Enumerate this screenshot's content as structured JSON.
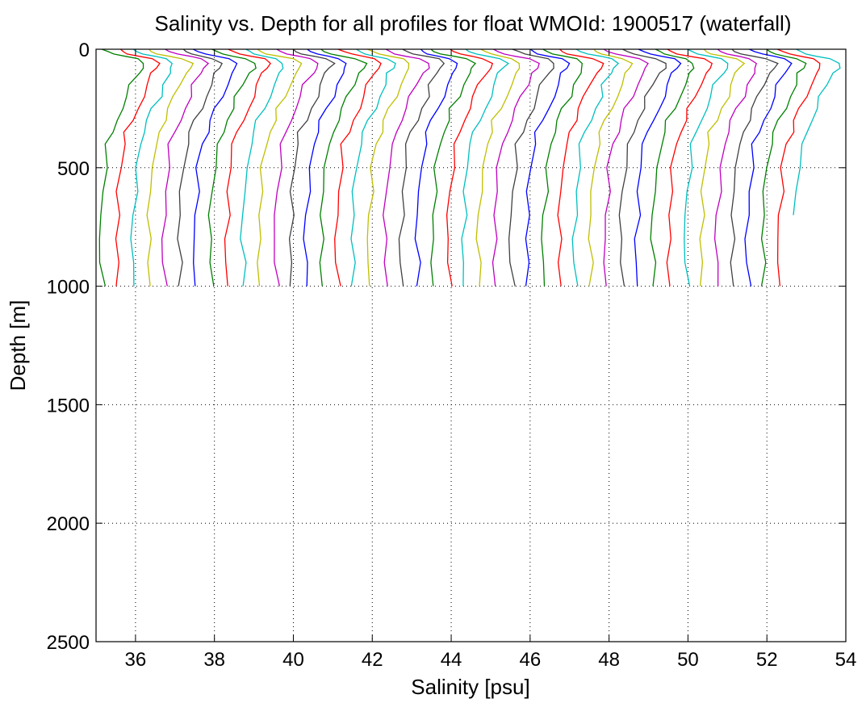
{
  "chart_data": {
    "type": "line",
    "title": "Salinity vs. Depth for all profiles for float WMOId: 1900517 (waterfall)",
    "xlabel": "Salinity [psu]",
    "ylabel": "Depth [m]",
    "xlim": [
      35,
      54
    ],
    "ylim": [
      0,
      2500
    ],
    "y_reversed": true,
    "grid": true,
    "x_ticks": [
      "36",
      "38",
      "40",
      "42",
      "44",
      "46",
      "48",
      "50",
      "52",
      "54"
    ],
    "y_ticks": [
      "0",
      "500",
      "1000",
      "1500",
      "2000",
      "2500"
    ],
    "colors": [
      "#008000",
      "#ff0000",
      "#00bfbf",
      "#bfbf00",
      "#bf00bf",
      "#404040",
      "#0000ff"
    ],
    "waterfall": {
      "profile_count": 45,
      "first_base_salinity": 35.1,
      "offset_per_profile": 0.4,
      "max_depth": 1000,
      "last_profile_max_depth": 730
    },
    "profile_shape": {
      "depth": [
        0,
        10,
        20,
        30,
        40,
        60,
        80,
        100,
        150,
        200,
        250,
        300,
        350,
        400,
        500,
        600,
        700,
        800,
        900,
        1000
      ],
      "salinity_offset": [
        0.05,
        0.15,
        0.3,
        0.6,
        0.9,
        1.1,
        1.05,
        0.95,
        0.8,
        0.7,
        0.55,
        0.42,
        0.3,
        0.2,
        0.12,
        0.07,
        0.03,
        0.0,
        0.02,
        0.05
      ]
    }
  }
}
